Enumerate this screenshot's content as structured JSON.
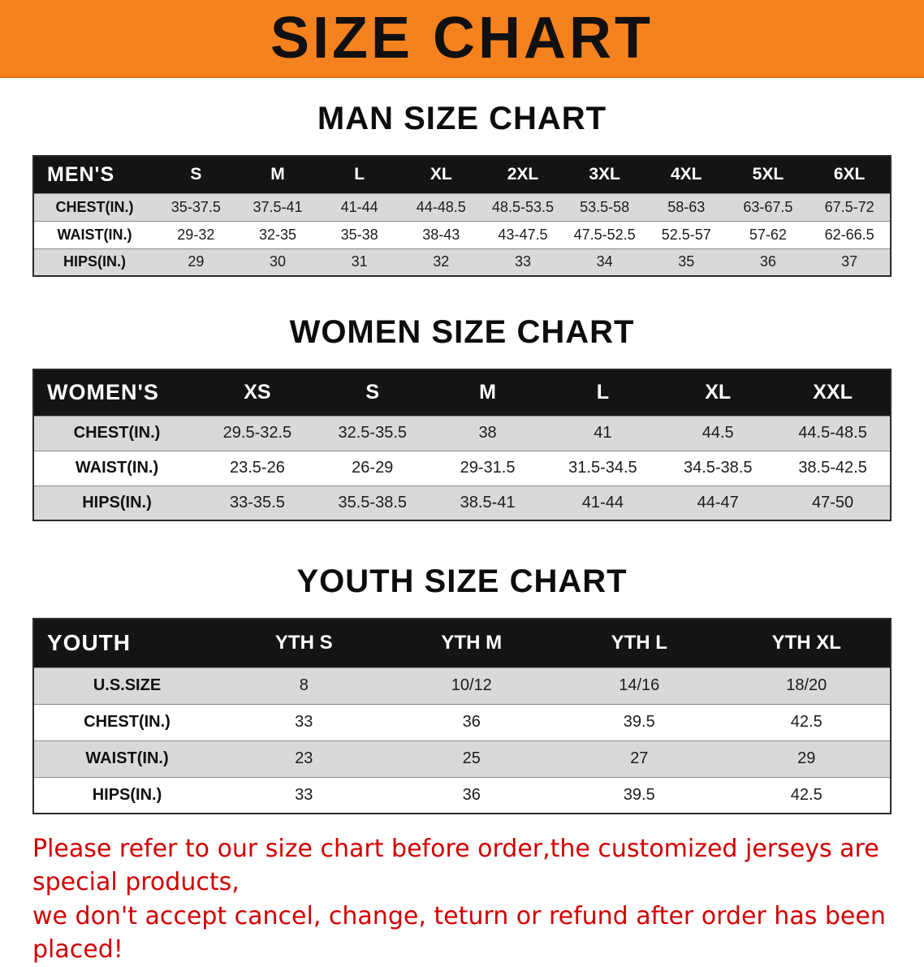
{
  "banner": {
    "title": "SIZE CHART"
  },
  "men": {
    "heading": "MAN SIZE CHART",
    "table": {
      "header": [
        "MEN'S",
        "S",
        "M",
        "L",
        "XL",
        "2XL",
        "3XL",
        "4XL",
        "5XL",
        "6XL"
      ],
      "rows": [
        [
          "CHEST(IN.)",
          "35-37.5",
          "37.5-41",
          "41-44",
          "44-48.5",
          "48.5-53.5",
          "53.5-58",
          "58-63",
          "63-67.5",
          "67.5-72"
        ],
        [
          "WAIST(IN.)",
          "29-32",
          "32-35",
          "35-38",
          "38-43",
          "43-47.5",
          "47.5-52.5",
          "52.5-57",
          "57-62",
          "62-66.5"
        ],
        [
          "HIPS(IN.)",
          "29",
          "30",
          "31",
          "32",
          "33",
          "34",
          "35",
          "36",
          "37"
        ]
      ]
    }
  },
  "women": {
    "heading": "WOMEN SIZE CHART",
    "table": {
      "header": [
        "WOMEN'S",
        "XS",
        "S",
        "M",
        "L",
        "XL",
        "XXL"
      ],
      "rows": [
        [
          "CHEST(IN.)",
          "29.5-32.5",
          "32.5-35.5",
          "38",
          "41",
          "44.5",
          "44.5-48.5"
        ],
        [
          "WAIST(IN.)",
          "23.5-26",
          "26-29",
          "29-31.5",
          "31.5-34.5",
          "34.5-38.5",
          "38.5-42.5"
        ],
        [
          "HIPS(IN.)",
          "33-35.5",
          "35.5-38.5",
          "38.5-41",
          "41-44",
          "44-47",
          "47-50"
        ]
      ]
    }
  },
  "youth": {
    "heading": "YOUTH SIZE CHART",
    "table": {
      "header": [
        "YOUTH",
        "YTH S",
        "YTH M",
        "YTH L",
        "YTH XL"
      ],
      "rows": [
        [
          "U.S.SIZE",
          "8",
          "10/12",
          "14/16",
          "18/20"
        ],
        [
          "CHEST(IN.)",
          "33",
          "36",
          "39.5",
          "42.5"
        ],
        [
          "WAIST(IN.)",
          "23",
          "25",
          "27",
          "29"
        ],
        [
          "HIPS(IN.)",
          "33",
          "36",
          "39.5",
          "42.5"
        ]
      ]
    }
  },
  "disclaimer": {
    "line1": "Please refer to our size chart before order,the customized jerseys are special products,",
    "line2": "we don't accept cancel, change, teturn or refund after order has been placed!"
  },
  "colors": {
    "banner_bg": "#f5821f",
    "header_bg": "#141414",
    "row_alt": "#d9d9d9",
    "disclaimer": "#d10000"
  }
}
